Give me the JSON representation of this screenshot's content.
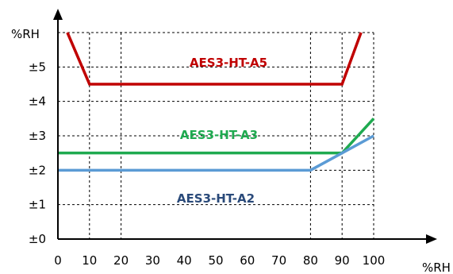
{
  "chart_data": {
    "type": "line",
    "xlabel": "%RH",
    "ylabel": "%RH",
    "x_ticks": [
      "0",
      "10",
      "20",
      "30",
      "40",
      "50",
      "60",
      "70",
      "80",
      "90",
      "100"
    ],
    "y_ticks": [
      "±0",
      "±1",
      "±2",
      "±3",
      "±4",
      "±5"
    ],
    "xlim": [
      0,
      100
    ],
    "ylim": [
      0,
      6
    ],
    "grid": true,
    "series": [
      {
        "name": "AES3-HT-A5",
        "color": "#c00000",
        "points": [
          [
            3,
            6.0
          ],
          [
            10,
            4.5
          ],
          [
            90,
            4.5
          ],
          [
            96,
            6.0
          ]
        ]
      },
      {
        "name": "AES3-HT-A3",
        "color": "#1faa50",
        "points": [
          [
            0,
            2.5
          ],
          [
            90,
            2.5
          ],
          [
            100,
            3.5
          ]
        ]
      },
      {
        "name": "AES3-HT-A2",
        "color": "#5b9bd5",
        "label_color": "#2a4a7a",
        "points": [
          [
            0,
            2.0
          ],
          [
            80,
            2.0
          ],
          [
            90,
            2.5
          ],
          [
            100,
            3.0
          ]
        ]
      }
    ]
  }
}
